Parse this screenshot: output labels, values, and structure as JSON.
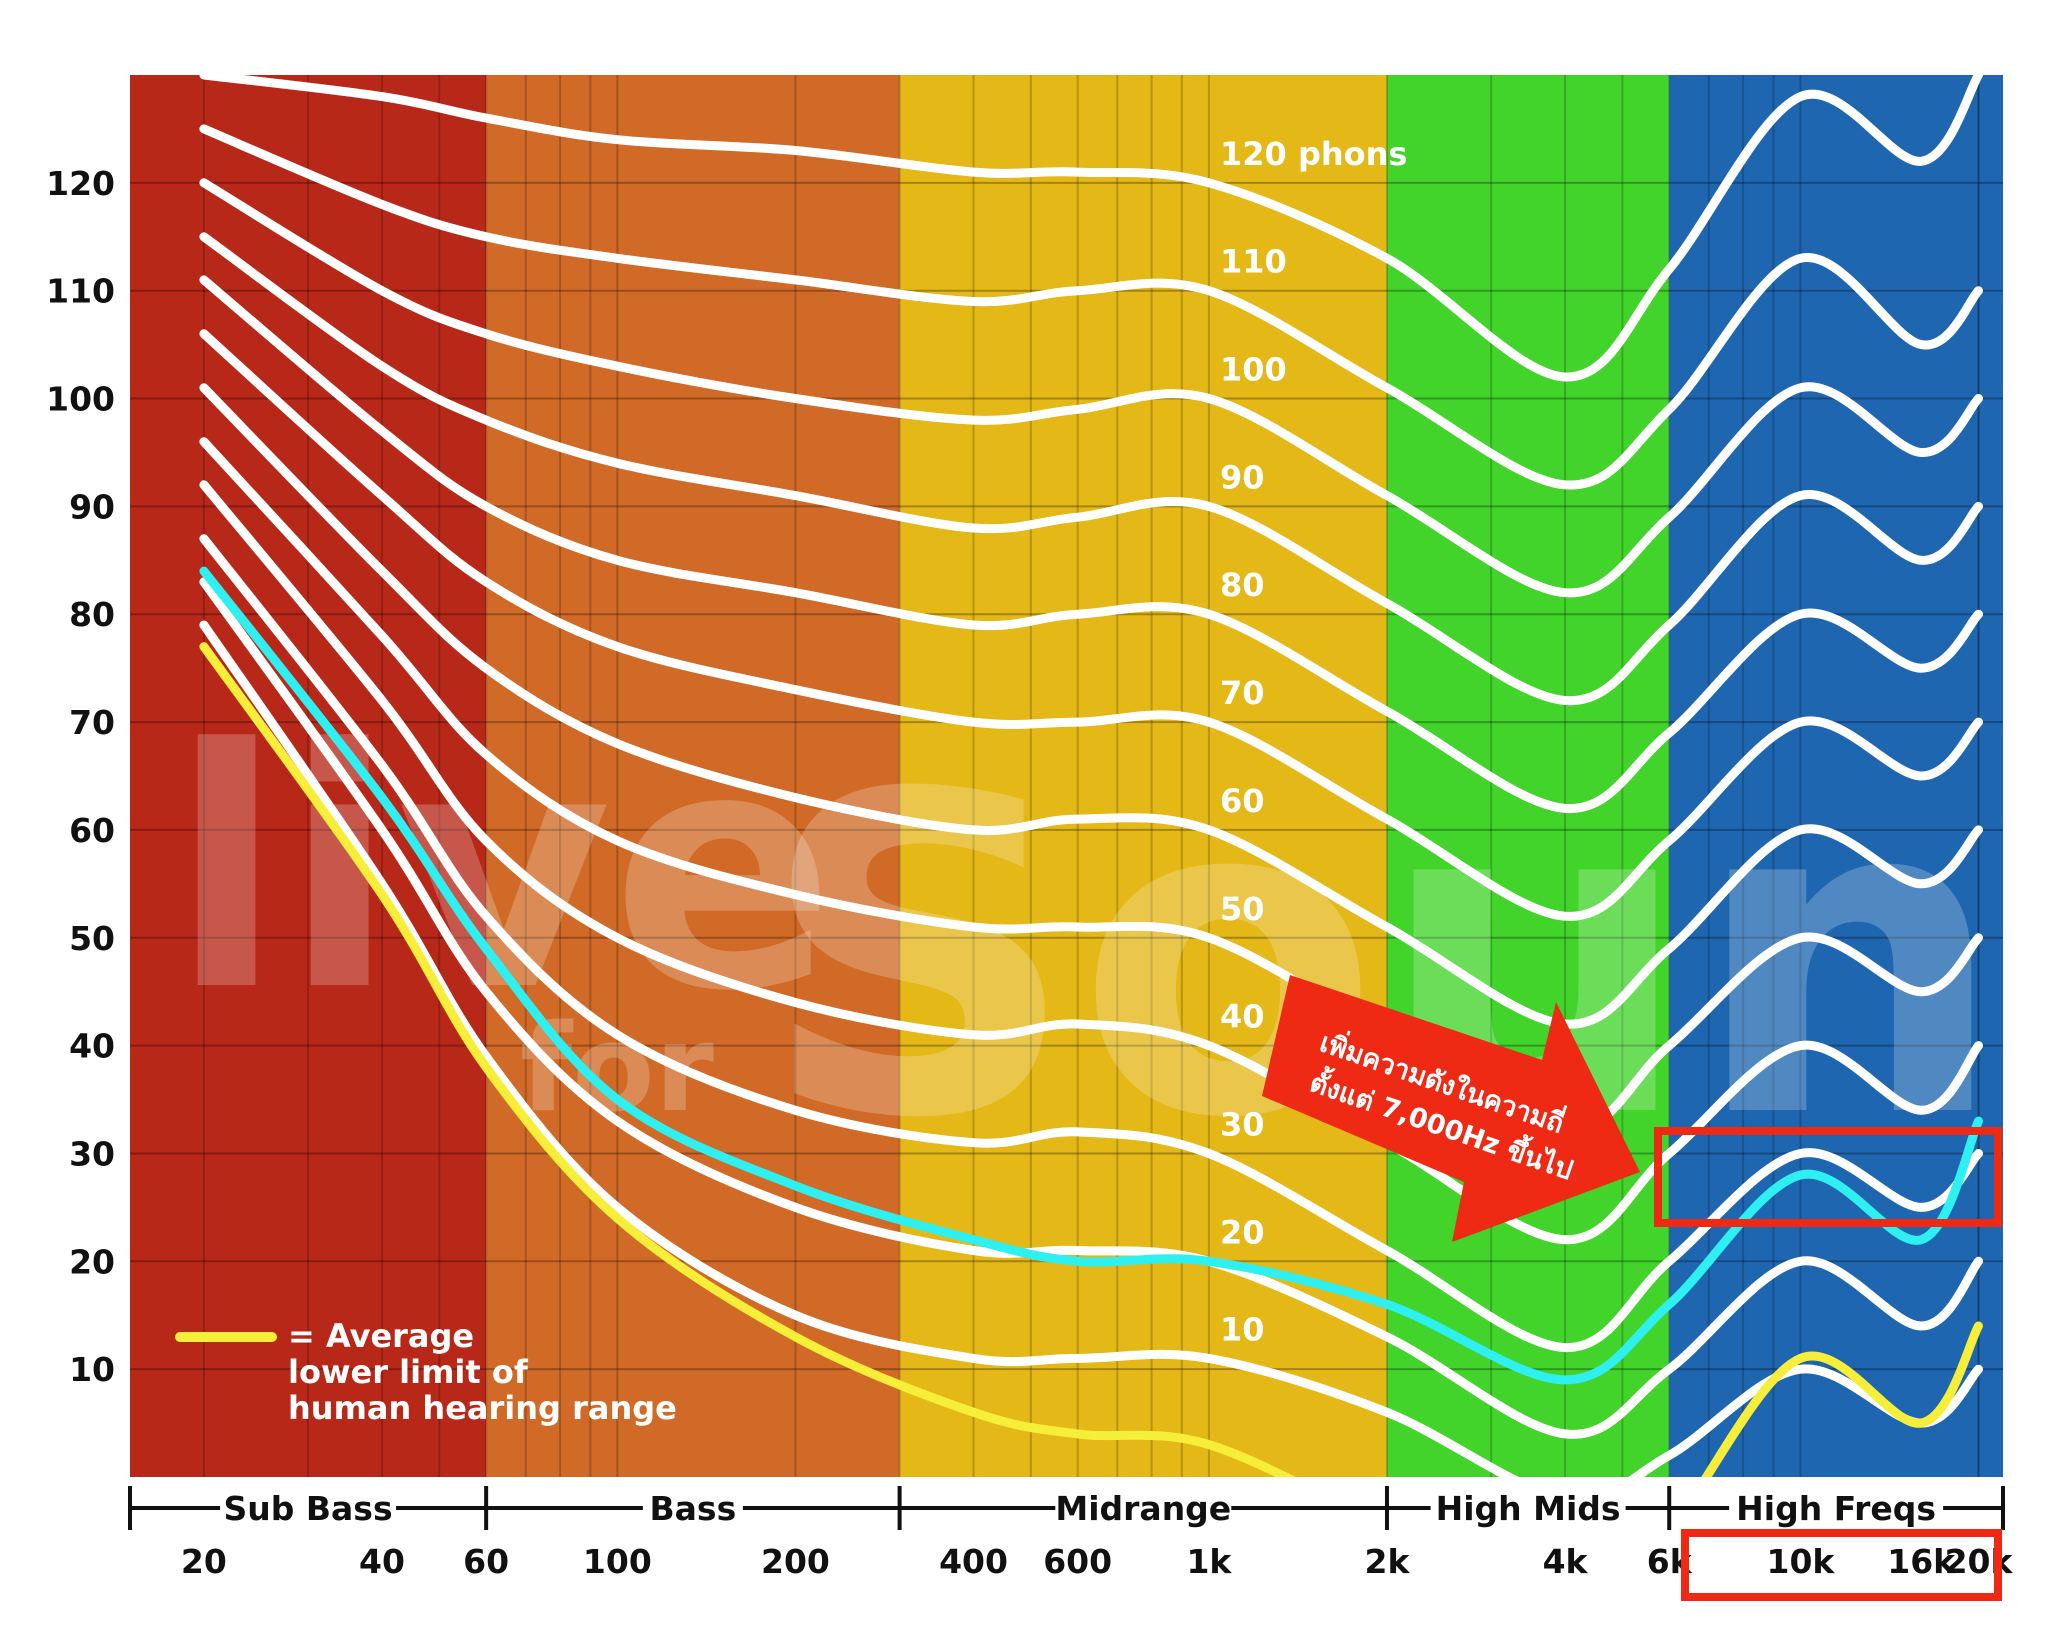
{
  "chart_data": {
    "type": "line",
    "x_scale": "log",
    "xlim": [
      15,
      22000
    ],
    "ylim": [
      0,
      130
    ],
    "grid": true,
    "y_ticks": [
      120,
      110,
      100,
      90,
      80,
      70,
      60,
      50,
      40,
      30,
      20,
      10
    ],
    "x_ticks": [
      {
        "label": "20",
        "value": 20
      },
      {
        "label": "40",
        "value": 40
      },
      {
        "label": "60",
        "value": 60
      },
      {
        "label": "100",
        "value": 100
      },
      {
        "label": "200",
        "value": 200
      },
      {
        "label": "400",
        "value": 400
      },
      {
        "label": "600",
        "value": 600
      },
      {
        "label": "1k",
        "value": 1000
      },
      {
        "label": "2k",
        "value": 2000
      },
      {
        "label": "4k",
        "value": 4000
      },
      {
        "label": "6k",
        "value": 6000
      },
      {
        "label": "10k",
        "value": 10000
      },
      {
        "label": "16k",
        "value": 16000
      },
      {
        "label": "20k",
        "value": 20000
      }
    ],
    "bands": [
      {
        "name": "Sub Bass",
        "from": 15,
        "to": 60,
        "color": "#b82818"
      },
      {
        "name": "Bass",
        "from": 60,
        "to": 300,
        "color": "#d06a26"
      },
      {
        "name": "Midrange",
        "from": 300,
        "to": 2000,
        "color": "#e4b817"
      },
      {
        "name": "High Mids",
        "from": 2000,
        "to": 6000,
        "color": "#42d42a"
      },
      {
        "name": "High Freqs",
        "from": 6000,
        "to": 22000,
        "color": "#1e66b0"
      }
    ],
    "x": [
      20,
      40,
      60,
      100,
      200,
      400,
      600,
      1000,
      2000,
      4000,
      6000,
      10000,
      16000,
      20000
    ],
    "series": [
      {
        "label": "120 phons",
        "color": "#ffffff",
        "values": [
          130,
          128,
          126,
          124,
          123,
          121,
          121,
          120,
          113,
          102,
          112,
          128,
          122,
          130
        ]
      },
      {
        "label": "110",
        "color": "#ffffff",
        "values": [
          125,
          118,
          115,
          113,
          111,
          109,
          110,
          110,
          101,
          92,
          99,
          113,
          105,
          110
        ]
      },
      {
        "label": "100",
        "color": "#ffffff",
        "values": [
          120,
          110,
          106,
          103,
          100,
          98,
          99,
          100,
          91,
          82,
          89,
          101,
          95,
          100
        ]
      },
      {
        "label": "90",
        "color": "#ffffff",
        "values": [
          115,
          103,
          98,
          94,
          91,
          88,
          89,
          90,
          81,
          72,
          79,
          91,
          85,
          90
        ]
      },
      {
        "label": "80",
        "color": "#ffffff",
        "values": [
          111,
          97,
          90,
          85,
          82,
          79,
          80,
          80,
          71,
          62,
          69,
          80,
          75,
          80
        ]
      },
      {
        "label": "70",
        "color": "#ffffff",
        "values": [
          106,
          91,
          83,
          77,
          73,
          70,
          70,
          70,
          61,
          52,
          59,
          70,
          65,
          70
        ]
      },
      {
        "label": "60",
        "color": "#ffffff",
        "values": [
          101,
          84,
          75,
          68,
          63,
          60,
          61,
          60,
          51,
          42,
          49,
          60,
          55,
          60
        ]
      },
      {
        "label": "50",
        "color": "#ffffff",
        "values": [
          96,
          78,
          67,
          59,
          54,
          51,
          51,
          50,
          41,
          32,
          40,
          50,
          45,
          50
        ]
      },
      {
        "label": "40",
        "color": "#ffffff",
        "values": [
          92,
          72,
          59,
          50,
          44,
          41,
          42,
          40,
          31,
          22,
          30,
          40,
          34,
          40
        ]
      },
      {
        "label": "30",
        "color": "#ffffff",
        "values": [
          87,
          66,
          52,
          41,
          34,
          31,
          32,
          30,
          21,
          12,
          20,
          30,
          25,
          30
        ]
      },
      {
        "label": "20",
        "color": "#ffffff",
        "values": [
          83,
          60,
          45,
          33,
          25,
          21,
          21,
          20,
          13,
          4,
          10,
          20,
          14,
          20
        ]
      },
      {
        "label": "10",
        "color": "#ffffff",
        "values": [
          79,
          55,
          39,
          25,
          15,
          11,
          11,
          11,
          6,
          -2,
          2,
          10,
          5,
          10
        ]
      },
      {
        "label": "",
        "color": "#2ef0f0",
        "values": [
          84,
          63,
          49,
          35,
          27,
          22,
          20,
          20,
          16,
          9,
          16,
          28,
          22,
          33
        ]
      },
      {
        "label": "",
        "color": "#f7ee3a",
        "values": [
          77,
          54,
          38,
          24,
          13,
          6,
          4,
          3,
          -5,
          -15,
          -5,
          11,
          5,
          14
        ]
      }
    ],
    "annotations": [
      {
        "text": "เพิ่มความดังในความถี่",
        "type": "arrow-callout",
        "color": "#ee2a14"
      },
      {
        "text": "ตั้งแต่ 7,000Hz ขึ้นไป",
        "type": "arrow-callout",
        "color": "#ee2a14"
      }
    ],
    "highlight_color": "#ee2a14",
    "legend": {
      "line_color": "#f7ee3a",
      "lines": [
        "= Average",
        "lower limit of",
        "human hearing range"
      ],
      "position": "bottom-left"
    }
  },
  "watermark": {
    "text_main": "live",
    "text_word": "Sound",
    "text_small": "for"
  }
}
